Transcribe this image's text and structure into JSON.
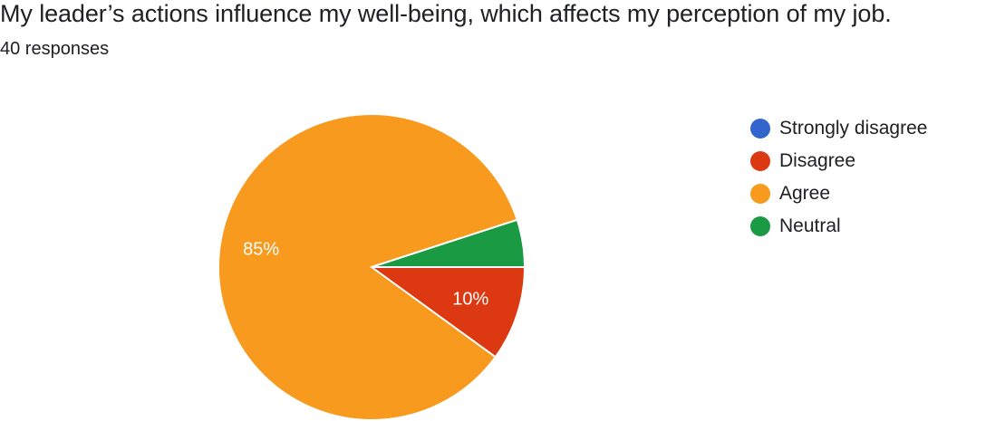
{
  "header": {
    "title": "My leader’s actions influence my well-being, which affects my perception of my job.",
    "responses": "40 responses"
  },
  "chart_data": {
    "type": "pie",
    "title": "My leader’s actions influence my well-being, which affects my perception of my job.",
    "categories": [
      "Strongly disagree",
      "Disagree",
      "Agree",
      "Neutral"
    ],
    "values": [
      0,
      4,
      34,
      2
    ],
    "percentages": [
      0,
      10,
      85,
      5
    ],
    "slice_labels": [
      "",
      "10%",
      "85%",
      ""
    ],
    "colors": [
      "#3366cc",
      "#dc3912",
      "#f79a1e",
      "#1a9a42"
    ],
    "legend_position": "right"
  }
}
